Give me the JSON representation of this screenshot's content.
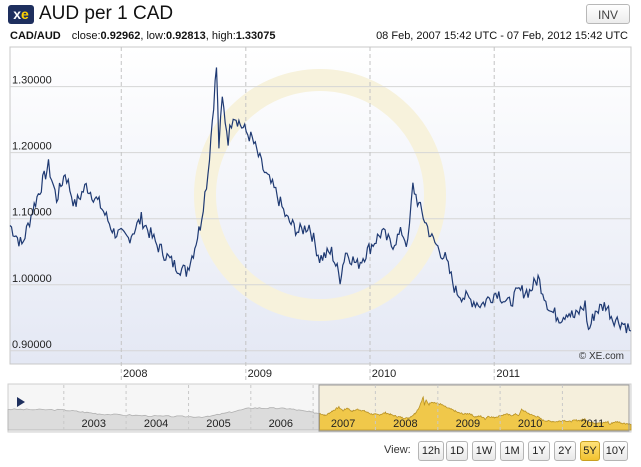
{
  "header": {
    "logo": {
      "x": "x",
      "e": "e"
    },
    "title": "AUD per 1 CAD",
    "invert_label": "INV"
  },
  "stats": {
    "pair": "CAD/AUD",
    "close_label": "close:",
    "close_value": "0.92962",
    "low_label": "low:",
    "low_value": "0.92813",
    "high_label": "high:",
    "high_value": "1.33075",
    "date_range": "08 Feb, 2007 15:42 UTC - 07 Feb, 2012 15:42 UTC"
  },
  "watermark": "© XE.com",
  "colors": {
    "line": "#1f3a73",
    "nav_fill": "#f0c84a",
    "nav_fill_pre": "#d4d4d4",
    "active_zoom": "#f5c84a"
  },
  "view": {
    "label": "View:",
    "buttons": [
      "12h",
      "1D",
      "1W",
      "1M",
      "1Y",
      "2Y",
      "5Y",
      "10Y"
    ],
    "active": "5Y"
  },
  "navigator": {
    "years": [
      "2003",
      "2004",
      "2005",
      "2006",
      "2007",
      "2008",
      "2009",
      "2010",
      "2011"
    ],
    "selected_from": "2007-02-08"
  },
  "chart_data": {
    "type": "line",
    "title": "",
    "xlabel": "",
    "ylabel": "",
    "x_ticks": [
      "2008",
      "2009",
      "2010",
      "2011"
    ],
    "y_ticks": [
      "0.90000",
      "1.00000",
      "1.10000",
      "1.20000",
      "1.30000"
    ],
    "ylim": [
      0.88,
      1.36
    ],
    "xlim": [
      "2007-02-08",
      "2012-02-07"
    ],
    "grid": true,
    "series": [
      {
        "x": [
          "2007-02-08",
          "2007-03-15",
          "2007-04-20",
          "2007-06-01",
          "2007-06-25",
          "2007-07-20",
          "2007-08-17",
          "2007-09-20",
          "2007-11-01",
          "2007-12-10",
          "2008-01-22",
          "2008-02-29",
          "2008-04-15",
          "2008-06-05",
          "2008-07-10",
          "2008-07-31",
          "2008-08-20",
          "2008-09-12",
          "2008-10-07",
          "2008-10-14",
          "2008-10-24",
          "2008-11-10",
          "2008-11-25",
          "2008-12-20",
          "2009-01-20",
          "2009-02-25",
          "2009-03-30",
          "2009-05-01",
          "2009-06-05",
          "2009-07-06",
          "2009-08-06",
          "2009-09-10",
          "2009-10-05",
          "2009-10-21",
          "2009-11-25",
          "2010-01-06",
          "2010-02-05",
          "2010-03-05",
          "2010-04-05",
          "2010-04-22",
          "2010-05-07",
          "2010-05-25",
          "2010-07-02",
          "2010-08-10",
          "2010-09-10",
          "2010-10-10",
          "2010-11-25",
          "2011-01-10",
          "2011-02-10",
          "2011-03-15",
          "2011-04-15",
          "2011-05-10",
          "2011-06-15",
          "2011-07-15",
          "2011-08-05",
          "2011-08-25",
          "2011-09-25",
          "2011-10-05",
          "2011-10-25",
          "2011-11-25",
          "2011-12-15",
          "2012-01-20",
          "2012-02-07"
        ],
        "y": [
          1.09,
          1.06,
          1.12,
          1.18,
          1.13,
          1.17,
          1.12,
          1.15,
          1.12,
          1.08,
          1.07,
          1.1,
          1.06,
          1.03,
          1.02,
          1.05,
          1.09,
          1.17,
          1.33,
          1.21,
          1.28,
          1.22,
          1.26,
          1.24,
          1.22,
          1.17,
          1.14,
          1.1,
          1.08,
          1.09,
          1.04,
          1.05,
          1.01,
          1.05,
          1.03,
          1.06,
          1.08,
          1.06,
          1.08,
          1.06,
          1.15,
          1.12,
          1.07,
          1.04,
          0.99,
          0.98,
          0.97,
          0.99,
          0.97,
          0.99,
          0.99,
          1.01,
          0.96,
          0.95,
          0.96,
          0.95,
          0.97,
          0.93,
          0.96,
          0.97,
          0.95,
          0.94,
          0.93
        ]
      }
    ]
  }
}
